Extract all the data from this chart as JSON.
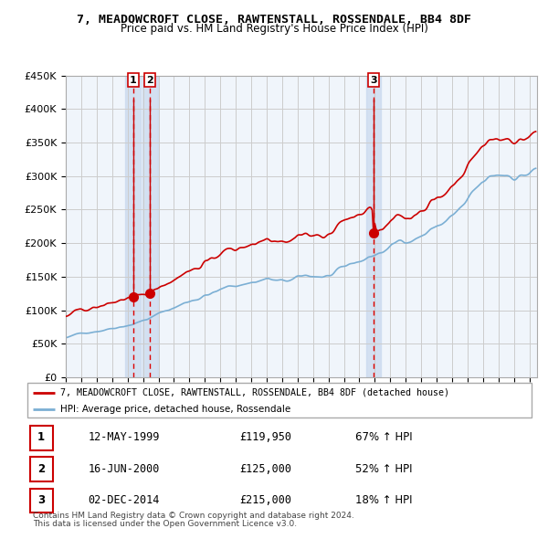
{
  "title": "7, MEADOWCROFT CLOSE, RAWTENSTALL, ROSSENDALE, BB4 8DF",
  "subtitle": "Price paid vs. HM Land Registry's House Price Index (HPI)",
  "legend_line1": "7, MEADOWCROFT CLOSE, RAWTENSTALL, ROSSENDALE, BB4 8DF (detached house)",
  "legend_line2": "HPI: Average price, detached house, Rossendale",
  "footnote1": "Contains HM Land Registry data © Crown copyright and database right 2024.",
  "footnote2": "This data is licensed under the Open Government Licence v3.0.",
  "transactions": [
    {
      "num": 1,
      "date": "12-MAY-1999",
      "price": 119950,
      "pct": "67%",
      "dir": "↑"
    },
    {
      "num": 2,
      "date": "16-JUN-2000",
      "price": 125000,
      "pct": "52%",
      "dir": "↑"
    },
    {
      "num": 3,
      "date": "02-DEC-2014",
      "price": 215000,
      "pct": "18%",
      "dir": "↑"
    }
  ],
  "t1_year": 1999.37,
  "t2_year": 2000.46,
  "t3_year": 2014.92,
  "t1_price": 119950,
  "t2_price": 125000,
  "t3_price": 215000,
  "ylim_min": 0,
  "ylim_max": 450000,
  "xlim_min": 1995,
  "xlim_max": 2025.5,
  "hpi_color": "#7bafd4",
  "price_color": "#cc0000",
  "vline_color": "#dd0000",
  "background_color": "#dce9f5",
  "plot_bg": "#f0f5fb",
  "grid_color": "#cccccc",
  "marker_color": "#cc0000"
}
